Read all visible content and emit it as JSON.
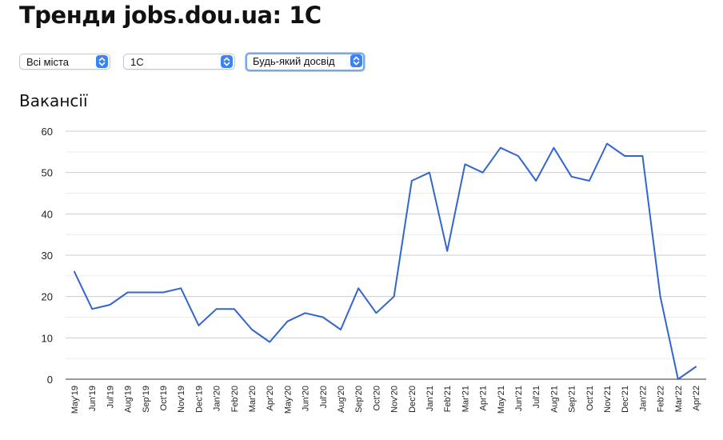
{
  "page": {
    "title": "Тренди jobs.dou.ua: 1C"
  },
  "filters": {
    "city": {
      "value": "Всі міста",
      "icon": "chevron-updown-icon"
    },
    "category": {
      "value": "1C",
      "icon": "chevron-updown-icon"
    },
    "experience": {
      "value": "Будь-який досвід",
      "icon": "chevron-updown-icon"
    }
  },
  "section": {
    "title": "Вакансії"
  },
  "colors": {
    "line": "#3366cc",
    "grid": "#cccccc",
    "minor_grid": "#ebebeb",
    "axis": "#333333",
    "select_accent": "#3b82f6"
  },
  "chart_data": {
    "type": "line",
    "title": "",
    "xlabel": "",
    "ylabel": "",
    "ylim": [
      0,
      60
    ],
    "yticks": [
      0,
      10,
      20,
      30,
      40,
      50,
      60
    ],
    "grid": true,
    "categories": [
      "May'19",
      "Jun'19",
      "Jul'19",
      "Aug'19",
      "Sep'19",
      "Oct'19",
      "Nov'19",
      "Dec'19",
      "Jan'20",
      "Feb'20",
      "Mar'20",
      "Apr'20",
      "May'20",
      "Jun'20",
      "Jul'20",
      "Aug'20",
      "Sep'20",
      "Oct'20",
      "Nov'20",
      "Dec'20",
      "Jan'21",
      "Feb'21",
      "Mar'21",
      "Apr'21",
      "May'21",
      "Jun'21",
      "Jul'21",
      "Aug'21",
      "Sep'21",
      "Oct'21",
      "Nov'21",
      "Dec'21",
      "Jan'22",
      "Feb'22",
      "Mar'22",
      "Apr'22"
    ],
    "series": [
      {
        "values": [
          26,
          17,
          18,
          21,
          21,
          21,
          22,
          13,
          17,
          17,
          12,
          9,
          14,
          16,
          15,
          12,
          22,
          16,
          20,
          48,
          50,
          31,
          52,
          50,
          56,
          54,
          48,
          56,
          49,
          48,
          57,
          54,
          54,
          20,
          0,
          3
        ]
      }
    ]
  }
}
